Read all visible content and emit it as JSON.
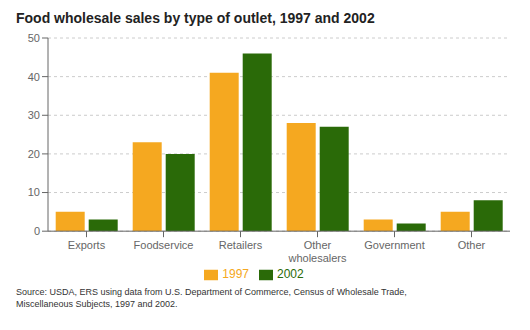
{
  "chart_data": {
    "type": "bar",
    "title": "Food wholesale sales by type of outlet, 1997 and 2002",
    "categories": [
      "Exports",
      "Foodservice",
      "Retailers",
      "Other\nwholesalers",
      "Government",
      "Other"
    ],
    "series": [
      {
        "name": "1997",
        "color": "#F5A820",
        "values": [
          5,
          23,
          41,
          28,
          3,
          5
        ]
      },
      {
        "name": "2002",
        "color": "#2A6A08",
        "values": [
          3,
          20,
          46,
          27,
          2,
          8
        ]
      }
    ],
    "ylim": [
      0,
      50
    ],
    "yticks": [
      0,
      10,
      20,
      30,
      40,
      50
    ],
    "grid": true,
    "legend": "bottom",
    "annotations": [
      "Source: USDA, ERS using data from U.S. Department of Commerce, Census of Wholesale Trade,\nMiscellaneous Subjects, 1997 and 2002."
    ]
  }
}
